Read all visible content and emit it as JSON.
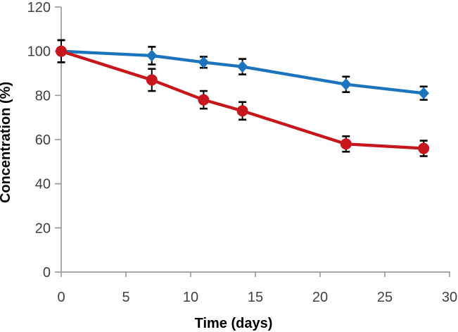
{
  "chart_data": {
    "type": "line",
    "title": "",
    "xlabel": "Time (days)",
    "ylabel": "Concentration (%)",
    "x": [
      0,
      7,
      11,
      14,
      22,
      28
    ],
    "series": [
      {
        "name": "blue-diamond-series",
        "marker": "diamond",
        "color": "#1B74BC",
        "values": [
          100,
          98,
          95,
          93,
          85,
          81
        ],
        "error": [
          5,
          4,
          2.5,
          3.5,
          3.5,
          3
        ]
      },
      {
        "name": "red-circle-series",
        "marker": "circle",
        "color": "#C8161D",
        "values": [
          100,
          87,
          78,
          73,
          58,
          56
        ],
        "error": [
          5,
          5,
          4,
          4,
          3.5,
          3.5
        ]
      }
    ],
    "xlim": [
      0,
      30
    ],
    "ylim": [
      0,
      120
    ],
    "x_ticks": [
      0,
      5,
      10,
      15,
      20,
      25,
      30
    ],
    "y_ticks": [
      0,
      20,
      40,
      60,
      80,
      100,
      120
    ],
    "grid": false,
    "legend": "none",
    "error_bar_color": "#000000",
    "axis_color": "#9C9C9C",
    "tick_label_color": "#404040"
  }
}
